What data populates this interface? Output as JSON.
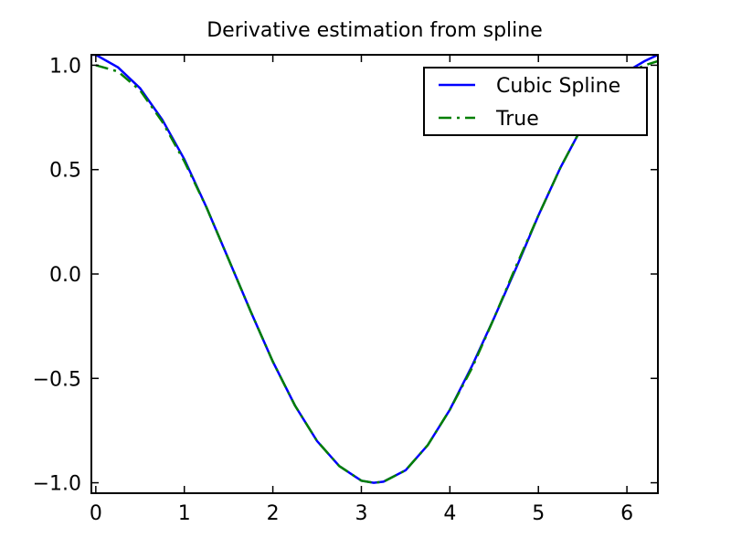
{
  "chart_data": {
    "type": "line",
    "title": "Derivative estimation from spline",
    "xlabel": "",
    "ylabel": "",
    "xlim": [
      -0.05,
      6.35
    ],
    "ylim": [
      -1.05,
      1.05
    ],
    "xticks": [
      0,
      1,
      2,
      3,
      4,
      5,
      6
    ],
    "xtick_labels": [
      "0",
      "1",
      "2",
      "3",
      "4",
      "5",
      "6"
    ],
    "yticks": [
      -1.0,
      -0.5,
      0.0,
      0.5,
      1.0
    ],
    "ytick_labels": [
      "−1.0",
      "−0.5",
      "0.0",
      "0.5",
      "1.0"
    ],
    "grid": false,
    "legend_position": "top-right",
    "series": [
      {
        "name": "Cubic Spline",
        "color": "#0000ff",
        "style": "solid",
        "x": [
          -0.05,
          0.0,
          0.25,
          0.5,
          0.75,
          1.0,
          1.25,
          1.5,
          1.75,
          2.0,
          2.25,
          2.5,
          2.75,
          3.0,
          3.14,
          3.25,
          3.5,
          3.75,
          4.0,
          4.25,
          4.5,
          4.75,
          5.0,
          5.25,
          5.5,
          5.75,
          6.0,
          6.2,
          6.35
        ],
        "y": [
          1.05,
          1.05,
          0.99,
          0.89,
          0.74,
          0.55,
          0.32,
          0.07,
          -0.18,
          -0.42,
          -0.63,
          -0.8,
          -0.92,
          -0.99,
          -1.0,
          -0.995,
          -0.94,
          -0.82,
          -0.65,
          -0.44,
          -0.21,
          0.03,
          0.28,
          0.51,
          0.71,
          0.86,
          0.97,
          1.02,
          1.05
        ]
      },
      {
        "name": "True",
        "color": "#007f00",
        "style": "dashdot",
        "x": [
          0.0,
          0.25,
          0.5,
          0.75,
          1.0,
          1.25,
          1.5,
          1.75,
          2.0,
          2.25,
          2.5,
          2.75,
          3.0,
          3.14,
          3.25,
          3.5,
          3.75,
          4.0,
          4.25,
          4.5,
          4.75,
          5.0,
          5.25,
          5.5,
          5.75,
          6.0,
          6.2,
          6.35
        ],
        "y": [
          1.0,
          0.97,
          0.88,
          0.73,
          0.54,
          0.32,
          0.07,
          -0.18,
          -0.42,
          -0.63,
          -0.8,
          -0.92,
          -0.99,
          -1.0,
          -0.995,
          -0.94,
          -0.82,
          -0.65,
          -0.45,
          -0.21,
          0.04,
          0.28,
          0.51,
          0.71,
          0.86,
          0.96,
          1.0,
          1.02
        ]
      }
    ]
  }
}
